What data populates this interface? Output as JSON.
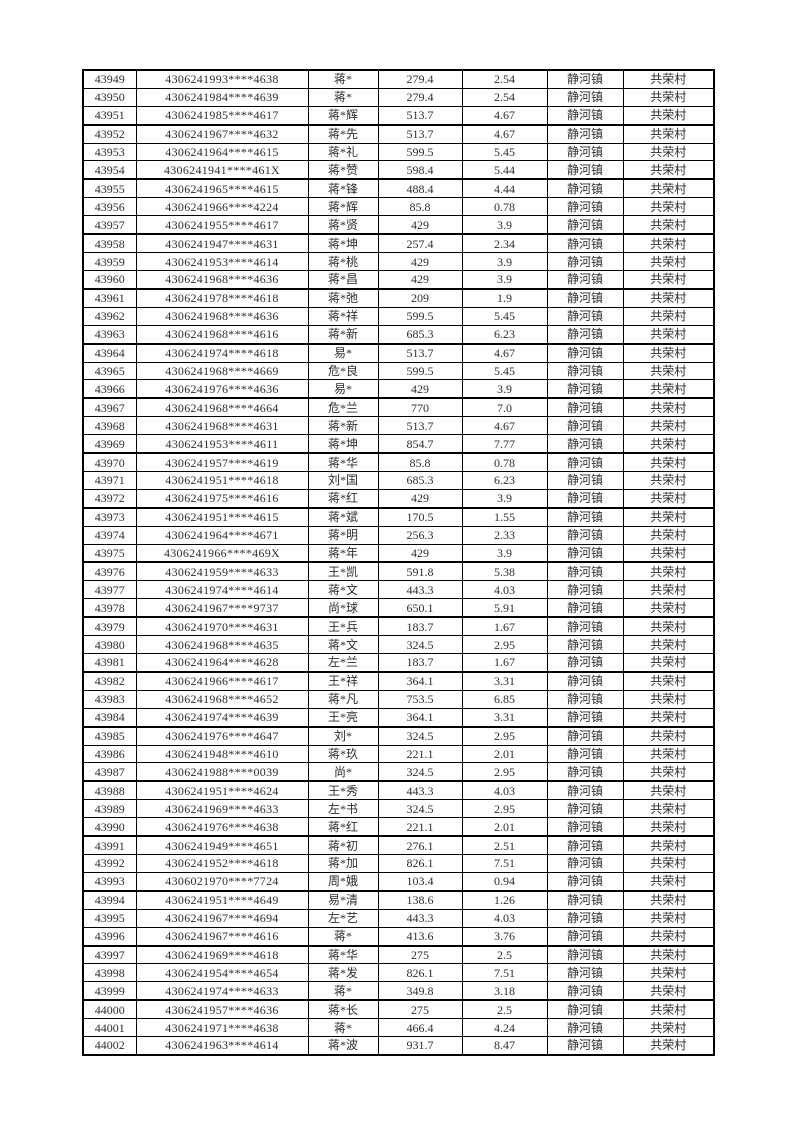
{
  "page": {
    "background_color": "#ffffff",
    "text_color": "#2e2e2e",
    "border_color": "#000000"
  },
  "table": {
    "columns": [
      "serial-number",
      "id-number",
      "name",
      "amount",
      "area",
      "town",
      "village"
    ],
    "town_value": "静河镇",
    "village_value": "共荣村",
    "rows": [
      [
        "43949",
        "4306241993****4638",
        "蒋*",
        "279.4",
        "2.54",
        "静河镇",
        "共荣村"
      ],
      [
        "43950",
        "4306241984****4639",
        "蒋*",
        "279.4",
        "2.54",
        "静河镇",
        "共荣村"
      ],
      [
        "43951",
        "4306241985****4617",
        "蒋*辉",
        "513.7",
        "4.67",
        "静河镇",
        "共荣村"
      ],
      [
        "43952",
        "4306241967****4632",
        "蒋*先",
        "513.7",
        "4.67",
        "静河镇",
        "共荣村"
      ],
      [
        "43953",
        "4306241964****4615",
        "蒋*礼",
        "599.5",
        "5.45",
        "静河镇",
        "共荣村"
      ],
      [
        "43954",
        "4306241941****461X",
        "蒋*赞",
        "598.4",
        "5.44",
        "静河镇",
        "共荣村"
      ],
      [
        "43955",
        "4306241965****4615",
        "蒋*锋",
        "488.4",
        "4.44",
        "静河镇",
        "共荣村"
      ],
      [
        "43956",
        "4306241966****4224",
        "蒋*辉",
        "85.8",
        "0.78",
        "静河镇",
        "共荣村"
      ],
      [
        "43957",
        "4306241955****4617",
        "蒋*贤",
        "429",
        "3.9",
        "静河镇",
        "共荣村"
      ],
      [
        "43958",
        "4306241947****4631",
        "蒋*坤",
        "257.4",
        "2.34",
        "静河镇",
        "共荣村"
      ],
      [
        "43959",
        "4306241953****4614",
        "蒋*桃",
        "429",
        "3.9",
        "静河镇",
        "共荣村"
      ],
      [
        "43960",
        "4306241968****4636",
        "蒋*昌",
        "429",
        "3.9",
        "静河镇",
        "共荣村"
      ],
      [
        "43961",
        "4306241978****4618",
        "蒋*弛",
        "209",
        "1.9",
        "静河镇",
        "共荣村"
      ],
      [
        "43962",
        "4306241968****4636",
        "蒋*祥",
        "599.5",
        "5.45",
        "静河镇",
        "共荣村"
      ],
      [
        "43963",
        "4306241968****4616",
        "蒋*新",
        "685.3",
        "6.23",
        "静河镇",
        "共荣村"
      ],
      [
        "43964",
        "4306241974****4618",
        "易*",
        "513.7",
        "4.67",
        "静河镇",
        "共荣村"
      ],
      [
        "43965",
        "4306241968****4669",
        "危*良",
        "599.5",
        "5.45",
        "静河镇",
        "共荣村"
      ],
      [
        "43966",
        "4306241976****4636",
        "易*",
        "429",
        "3.9",
        "静河镇",
        "共荣村"
      ],
      [
        "43967",
        "4306241968****4664",
        "危*兰",
        "770",
        "7.0",
        "静河镇",
        "共荣村"
      ],
      [
        "43968",
        "4306241968****4631",
        "蒋*新",
        "513.7",
        "4.67",
        "静河镇",
        "共荣村"
      ],
      [
        "43969",
        "4306241953****4611",
        "蒋*坤",
        "854.7",
        "7.77",
        "静河镇",
        "共荣村"
      ],
      [
        "43970",
        "4306241957****4619",
        "蒋*华",
        "85.8",
        "0.78",
        "静河镇",
        "共荣村"
      ],
      [
        "43971",
        "4306241951****4618",
        "刘*国",
        "685.3",
        "6.23",
        "静河镇",
        "共荣村"
      ],
      [
        "43972",
        "4306241975****4616",
        "蒋*红",
        "429",
        "3.9",
        "静河镇",
        "共荣村"
      ],
      [
        "43973",
        "4306241951****4615",
        "蒋*斌",
        "170.5",
        "1.55",
        "静河镇",
        "共荣村"
      ],
      [
        "43974",
        "4306241964****4671",
        "蒋*明",
        "256.3",
        "2.33",
        "静河镇",
        "共荣村"
      ],
      [
        "43975",
        "4306241966****469X",
        "蒋*年",
        "429",
        "3.9",
        "静河镇",
        "共荣村"
      ],
      [
        "43976",
        "4306241959****4633",
        "王*凯",
        "591.8",
        "5.38",
        "静河镇",
        "共荣村"
      ],
      [
        "43977",
        "4306241974****4614",
        "蒋*文",
        "443.3",
        "4.03",
        "静河镇",
        "共荣村"
      ],
      [
        "43978",
        "4306241967****9737",
        "尚*球",
        "650.1",
        "5.91",
        "静河镇",
        "共荣村"
      ],
      [
        "43979",
        "4306241970****4631",
        "王*兵",
        "183.7",
        "1.67",
        "静河镇",
        "共荣村"
      ],
      [
        "43980",
        "4306241968****4635",
        "蒋*文",
        "324.5",
        "2.95",
        "静河镇",
        "共荣村"
      ],
      [
        "43981",
        "4306241964****4628",
        "左*兰",
        "183.7",
        "1.67",
        "静河镇",
        "共荣村"
      ],
      [
        "43982",
        "4306241966****4617",
        "王*祥",
        "364.1",
        "3.31",
        "静河镇",
        "共荣村"
      ],
      [
        "43983",
        "4306241968****4652",
        "蒋*凡",
        "753.5",
        "6.85",
        "静河镇",
        "共荣村"
      ],
      [
        "43984",
        "4306241974****4639",
        "王*亮",
        "364.1",
        "3.31",
        "静河镇",
        "共荣村"
      ],
      [
        "43985",
        "4306241976****4647",
        "刘*",
        "324.5",
        "2.95",
        "静河镇",
        "共荣村"
      ],
      [
        "43986",
        "4306241948****4610",
        "蒋*玖",
        "221.1",
        "2.01",
        "静河镇",
        "共荣村"
      ],
      [
        "43987",
        "4306241988****0039",
        "尚*",
        "324.5",
        "2.95",
        "静河镇",
        "共荣村"
      ],
      [
        "43988",
        "4306241951****4624",
        "王*秀",
        "443.3",
        "4.03",
        "静河镇",
        "共荣村"
      ],
      [
        "43989",
        "4306241969****4633",
        "左*书",
        "324.5",
        "2.95",
        "静河镇",
        "共荣村"
      ],
      [
        "43990",
        "4306241976****4638",
        "蒋*红",
        "221.1",
        "2.01",
        "静河镇",
        "共荣村"
      ],
      [
        "43991",
        "4306241949****4651",
        "蒋*初",
        "276.1",
        "2.51",
        "静河镇",
        "共荣村"
      ],
      [
        "43992",
        "4306241952****4618",
        "蒋*加",
        "826.1",
        "7.51",
        "静河镇",
        "共荣村"
      ],
      [
        "43993",
        "4306021970****7724",
        "周*娥",
        "103.4",
        "0.94",
        "静河镇",
        "共荣村"
      ],
      [
        "43994",
        "4306241951****4649",
        "易*清",
        "138.6",
        "1.26",
        "静河镇",
        "共荣村"
      ],
      [
        "43995",
        "4306241967****4694",
        "左*艺",
        "443.3",
        "4.03",
        "静河镇",
        "共荣村"
      ],
      [
        "43996",
        "4306241967****4616",
        "蒋*",
        "413.6",
        "3.76",
        "静河镇",
        "共荣村"
      ],
      [
        "43997",
        "4306241969****4618",
        "蒋*华",
        "275",
        "2.5",
        "静河镇",
        "共荣村"
      ],
      [
        "43998",
        "4306241954****4654",
        "蒋*发",
        "826.1",
        "7.51",
        "静河镇",
        "共荣村"
      ],
      [
        "43999",
        "4306241974****4633",
        "蒋*",
        "349.8",
        "3.18",
        "静河镇",
        "共荣村"
      ],
      [
        "44000",
        "4306241957****4636",
        "蒋*长",
        "275",
        "2.5",
        "静河镇",
        "共荣村"
      ],
      [
        "44001",
        "4306241971****4638",
        "蒋*",
        "466.4",
        "4.24",
        "静河镇",
        "共荣村"
      ],
      [
        "44002",
        "4306241963****4614",
        "蒋*波",
        "931.7",
        "8.47",
        "静河镇",
        "共荣村"
      ]
    ]
  }
}
